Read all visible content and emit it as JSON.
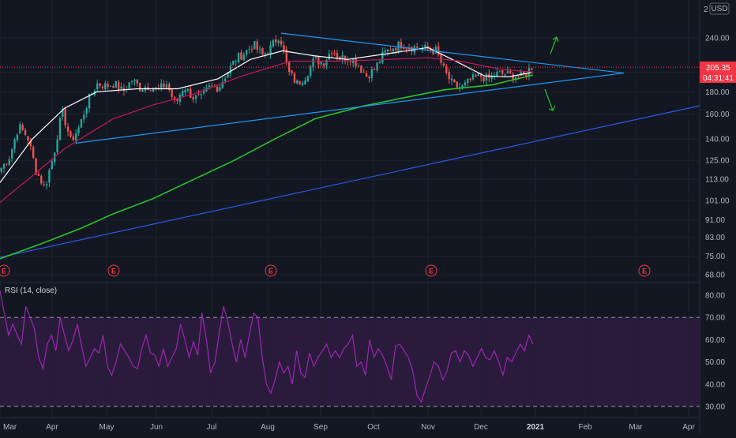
{
  "chart_data": {
    "type": "candlestick",
    "currency": "USD",
    "price_axis_ticks": [
      "240.00",
      "200.00",
      "180.00",
      "160.00",
      "140.00",
      "125.00",
      "113.00",
      "101.00",
      "91.00",
      "83.00",
      "75.00",
      "68.00"
    ],
    "price_axis_top_partial": "2",
    "current_price": "205.35",
    "countdown": "04:31:41",
    "time_axis_ticks": [
      "Mar",
      "Apr",
      "May",
      "Jun",
      "Jul",
      "Aug",
      "Sep",
      "Oct",
      "Nov",
      "Dec",
      "2021",
      "Feb",
      "Mar",
      "Apr"
    ],
    "earnings_marker": "E",
    "earnings_months": [
      "Feb",
      "May",
      "Aug",
      "Oct",
      "Feb"
    ],
    "price_path": [
      [
        "Mar",
        120
      ],
      [
        "Mar",
        128
      ],
      [
        "Mar",
        150
      ],
      [
        "Mar",
        142
      ],
      [
        "Mar",
        118
      ],
      [
        "Mar",
        108
      ],
      [
        "Mar",
        128
      ],
      [
        "Apr",
        162
      ],
      [
        "Apr",
        138
      ],
      [
        "Apr",
        150
      ],
      [
        "Apr",
        172
      ],
      [
        "Apr",
        188
      ],
      [
        "Apr",
        186
      ],
      [
        "May",
        188
      ],
      [
        "May",
        180
      ],
      [
        "May",
        192
      ],
      [
        "May",
        184
      ],
      [
        "May",
        186
      ],
      [
        "May",
        182
      ],
      [
        "Jun",
        188
      ],
      [
        "Jun",
        168
      ],
      [
        "Jun",
        186
      ],
      [
        "Jun",
        175
      ],
      [
        "Jun",
        174
      ],
      [
        "Jun",
        185
      ],
      [
        "Jun",
        184
      ],
      [
        "Jul",
        200
      ],
      [
        "Jul",
        215
      ],
      [
        "Jul",
        222
      ],
      [
        "Jul",
        232
      ],
      [
        "Jul",
        218
      ],
      [
        "Jul",
        228
      ],
      [
        "Aug",
        244
      ],
      [
        "Aug",
        200
      ],
      [
        "Aug",
        188
      ],
      [
        "Aug",
        196
      ],
      [
        "Aug",
        214
      ],
      [
        "Aug",
        210
      ],
      [
        "Aug",
        225
      ],
      [
        "Sep",
        215
      ],
      [
        "Sep",
        218
      ],
      [
        "Sep",
        208
      ],
      [
        "Sep",
        196
      ],
      [
        "Sep",
        204
      ],
      [
        "Sep",
        221
      ],
      [
        "Oct",
        228
      ],
      [
        "Oct",
        232
      ],
      [
        "Oct",
        229
      ],
      [
        "Oct",
        228
      ],
      [
        "Oct",
        226
      ],
      [
        "Oct",
        224
      ],
      [
        "Nov",
        200
      ],
      [
        "Nov",
        186
      ],
      [
        "Nov",
        184
      ],
      [
        "Nov",
        192
      ],
      [
        "Nov",
        196
      ],
      [
        "Nov",
        193
      ],
      [
        "Dec",
        198
      ],
      [
        "Dec",
        198
      ],
      [
        "Dec",
        196
      ],
      [
        "Dec",
        195
      ],
      [
        "Dec",
        206
      ]
    ],
    "series": [
      {
        "name": "",
        "color": "#ffffff",
        "kind": "short moving average",
        "values": [
          [
            0.0,
            111
          ],
          [
            0.04,
            140
          ],
          [
            0.08,
            165
          ],
          [
            0.12,
            180
          ],
          [
            0.17,
            183
          ],
          [
            0.22,
            183
          ],
          [
            0.27,
            193
          ],
          [
            0.31,
            214
          ],
          [
            0.35,
            224
          ],
          [
            0.39,
            218
          ],
          [
            0.43,
            214
          ],
          [
            0.49,
            222
          ],
          [
            0.53,
            228
          ],
          [
            0.56,
            214
          ],
          [
            0.6,
            196
          ],
          [
            0.63,
            195
          ],
          [
            0.66,
            200
          ]
        ]
      },
      {
        "name": "",
        "color": "#c2185b",
        "kind": "medium moving average",
        "values": [
          [
            0.0,
            100
          ],
          [
            0.04,
            115
          ],
          [
            0.08,
            133
          ],
          [
            0.14,
            156
          ],
          [
            0.19,
            168
          ],
          [
            0.24,
            178
          ],
          [
            0.3,
            196
          ],
          [
            0.36,
            212
          ],
          [
            0.42,
            212
          ],
          [
            0.48,
            214
          ],
          [
            0.53,
            216
          ],
          [
            0.57,
            212
          ],
          [
            0.62,
            203
          ],
          [
            0.66,
            200
          ]
        ]
      },
      {
        "name": "",
        "color": "#2bc32b",
        "kind": "long moving average",
        "values": [
          [
            0.0,
            74
          ],
          [
            0.05,
            80
          ],
          [
            0.1,
            87
          ],
          [
            0.14,
            94
          ],
          [
            0.19,
            102
          ],
          [
            0.24,
            113
          ],
          [
            0.29,
            125
          ],
          [
            0.34,
            140
          ],
          [
            0.39,
            156
          ],
          [
            0.45,
            167
          ],
          [
            0.51,
            176
          ],
          [
            0.55,
            182
          ],
          [
            0.61,
            187
          ],
          [
            0.66,
            197
          ]
        ]
      }
    ],
    "drawings": [
      "descending resistance trendline",
      "ascending support trendline",
      "long-term ascending trendline",
      "horizontal dotted price line",
      "up arrow",
      "down arrow"
    ],
    "rsi": {
      "label": "RSI (14, close)",
      "ticks": [
        "80.00",
        "70.00",
        "60.00",
        "50.00",
        "40.00",
        "30.00"
      ],
      "bands": [
        30,
        70
      ],
      "ylim": [
        28,
        83
      ],
      "values": [
        82,
        72,
        62,
        67,
        62,
        58,
        75,
        70,
        65,
        52,
        47,
        58,
        62,
        55,
        70,
        62,
        55,
        60,
        67,
        57,
        48,
        52,
        56,
        54,
        62,
        48,
        44,
        50,
        58,
        55,
        52,
        48,
        47,
        56,
        62,
        54,
        53,
        48,
        56,
        48,
        52,
        56,
        67,
        60,
        52,
        59,
        53,
        72,
        60,
        45,
        50,
        63,
        75,
        68,
        58,
        50,
        60,
        52,
        62,
        72,
        70,
        52,
        40,
        36,
        42,
        50,
        45,
        48,
        40,
        55,
        45,
        43,
        54,
        48,
        52,
        55,
        58,
        52,
        55,
        52,
        56,
        58,
        62,
        48,
        50,
        44,
        60,
        52,
        56,
        53,
        48,
        42,
        57,
        58,
        55,
        52,
        46,
        35,
        32,
        38,
        44,
        50,
        48,
        42,
        46,
        54,
        55,
        50,
        55,
        53,
        48,
        52,
        56,
        52,
        51,
        55,
        50,
        44,
        52,
        50,
        54,
        58,
        55,
        62,
        58
      ]
    }
  }
}
